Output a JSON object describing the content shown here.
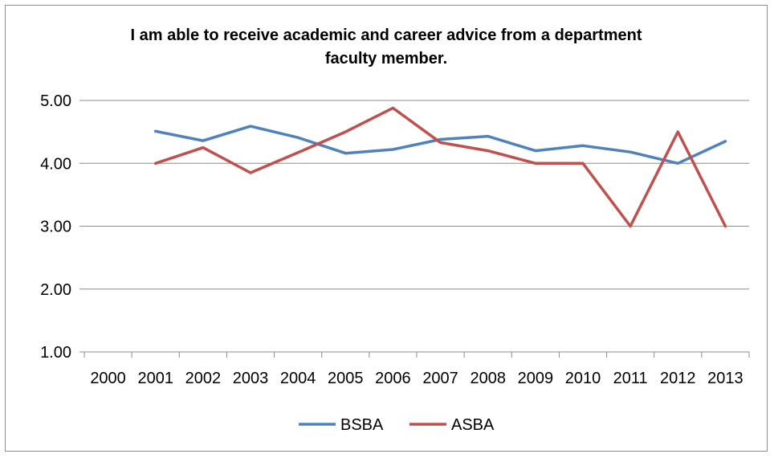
{
  "chart_data": {
    "type": "line",
    "title_line1": "I am able to receive academic and career advice from a department",
    "title_line2": "faculty member.",
    "xlabel": "",
    "ylabel": "",
    "categories": [
      "2000",
      "2001",
      "2002",
      "2003",
      "2004",
      "2005",
      "2006",
      "2007",
      "2008",
      "2009",
      "2010",
      "2011",
      "2012",
      "2013"
    ],
    "y_ticks": [
      "1.00",
      "2.00",
      "3.00",
      "4.00",
      "5.00"
    ],
    "ylim": [
      1,
      5
    ],
    "grid": "horizontal",
    "legend_position": "bottom",
    "series": [
      {
        "name": "BSBA",
        "color": "#4f81bd",
        "values": [
          null,
          4.51,
          4.36,
          4.59,
          4.41,
          4.16,
          4.22,
          4.38,
          4.43,
          4.2,
          4.28,
          4.18,
          4.0,
          4.35
        ]
      },
      {
        "name": "ASBA",
        "color": "#c0504d",
        "values": [
          null,
          4.0,
          4.25,
          3.85,
          4.17,
          4.5,
          4.88,
          4.33,
          4.2,
          4.0,
          4.0,
          3.0,
          4.5,
          3.0
        ]
      }
    ]
  }
}
